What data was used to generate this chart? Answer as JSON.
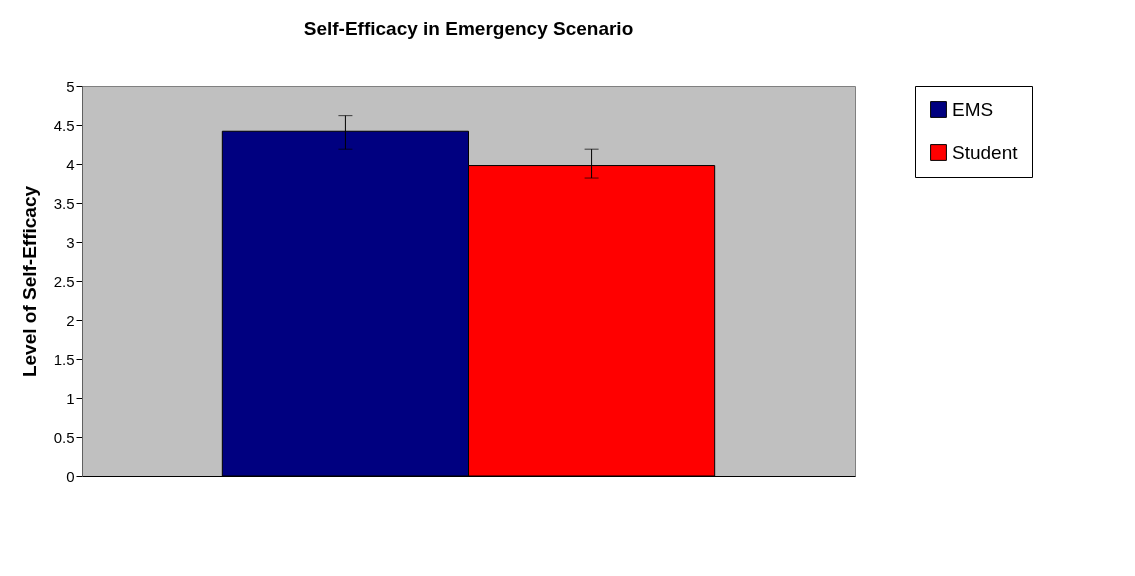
{
  "chart_data": {
    "type": "bar",
    "title": "Self-Efficacy in Emergency Scenario",
    "ylabel": "Level of Self-Efficacy",
    "categories": [
      null
    ],
    "series": [
      {
        "name": "EMS",
        "color": "#000080",
        "values": [
          4.42
        ],
        "errors": [
          [
            4.19,
            4.62
          ]
        ]
      },
      {
        "name": "Student",
        "color": "#ff0000",
        "values": [
          3.98
        ],
        "errors": [
          [
            3.82,
            4.19
          ]
        ]
      }
    ],
    "ylim": [
      0,
      5
    ],
    "yticks": [
      0,
      0.5,
      1,
      1.5,
      2,
      2.5,
      3,
      3.5,
      4,
      4.5,
      5
    ],
    "grid": false,
    "legend": "right",
    "tick_labels": "y"
  }
}
